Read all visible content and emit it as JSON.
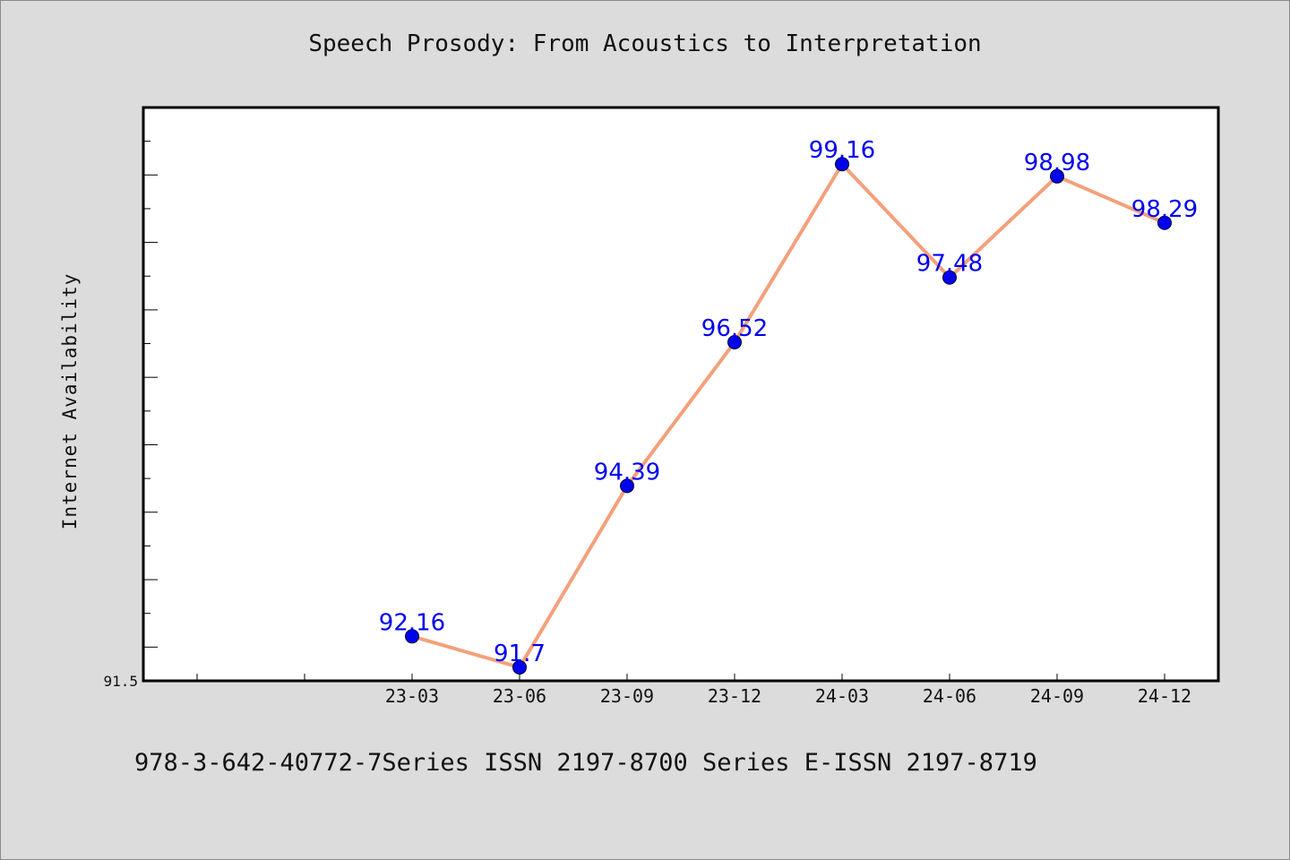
{
  "chart_data": {
    "type": "line",
    "title": "Speech Prosody: From Acoustics to Interpretation",
    "xlabel": "",
    "ylabel": "Internet Availability",
    "categories": [
      "23-03",
      "23-06",
      "23-09",
      "23-12",
      "24-03",
      "24-06",
      "24-09",
      "24-12"
    ],
    "series": [
      {
        "values": [
          92.16,
          91.7,
          94.39,
          96.52,
          99.16,
          97.48,
          98.98,
          98.29
        ]
      }
    ],
    "value_labels": [
      "92.16",
      "91.7",
      "94.39",
      "96.52",
      "99.16",
      "97.48",
      "98.98",
      "98.29"
    ],
    "ylim": [
      91.5,
      100
    ],
    "y_tick_labels": [
      "91.5"
    ],
    "grid": false,
    "colors": {
      "line": "#f4a07c",
      "marker": "#0000ee",
      "label": "#0000ee"
    }
  },
  "footer_text": "978-3-642-40772-7Series ISSN 2197-8700 Series E-ISSN 2197-8719"
}
